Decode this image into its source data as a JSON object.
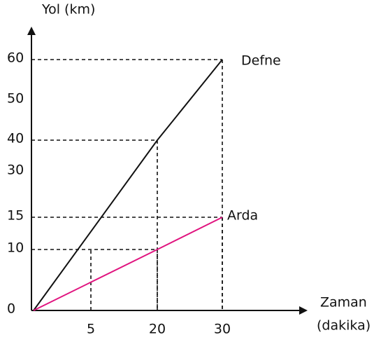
{
  "chart_data": {
    "type": "line",
    "ylabel": "Yol (km)",
    "xlabel": [
      "Zaman",
      "(dakika)"
    ],
    "xlim": [
      0,
      30
    ],
    "ylim": [
      0,
      60
    ],
    "xticks": [
      5,
      20,
      30
    ],
    "yticks": [
      0,
      10,
      15,
      30,
      40,
      50,
      60
    ],
    "x": [
      0,
      20,
      30
    ],
    "series": [
      {
        "name": "Defne",
        "color": "#111111",
        "values": [
          0,
          40,
          60
        ]
      },
      {
        "name": "Arda",
        "color": "#e0147f",
        "values": [
          0,
          10,
          15
        ]
      }
    ]
  }
}
